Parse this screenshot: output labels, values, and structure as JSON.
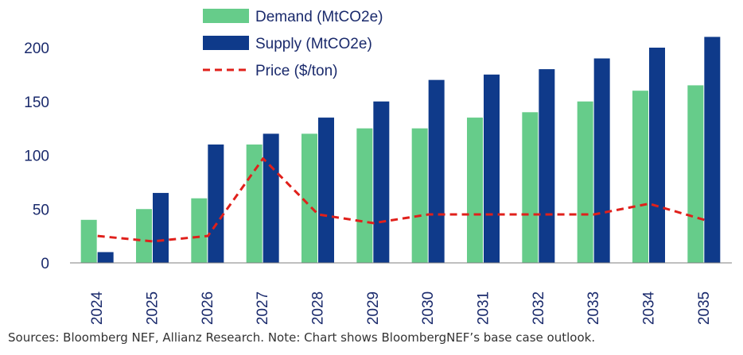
{
  "chart_data": {
    "type": "bar",
    "title": "",
    "xlabel": "",
    "ylabel": "",
    "ylim": [
      0,
      200
    ],
    "yticks": [
      0,
      50,
      100,
      150,
      200
    ],
    "grid": false,
    "legend_position": "top-center",
    "categories": [
      "2024",
      "2025",
      "2026",
      "2027",
      "2028",
      "2029",
      "2030",
      "2031",
      "2032",
      "2033",
      "2034",
      "2035"
    ],
    "series": [
      {
        "name": "Demand (MtCO2e)",
        "kind": "bar",
        "color": "#66cc8a",
        "values": [
          40,
          50,
          60,
          110,
          120,
          125,
          125,
          135,
          140,
          150,
          160,
          165
        ]
      },
      {
        "name": "Supply (MtCO2e)",
        "kind": "bar",
        "color": "#0f3a8a",
        "values": [
          10,
          65,
          110,
          120,
          135,
          150,
          170,
          175,
          180,
          190,
          200,
          210
        ]
      },
      {
        "name": "Price ($/ton)",
        "kind": "line",
        "style": "dashed",
        "color": "#e0201b",
        "values": [
          25,
          20,
          25,
          97,
          45,
          37,
          45,
          45,
          45,
          45,
          55,
          40
        ]
      }
    ]
  },
  "source_note": "Sources: Bloomberg NEF, Allianz Research. Note: Chart shows BloombergNEF’s base case outlook."
}
